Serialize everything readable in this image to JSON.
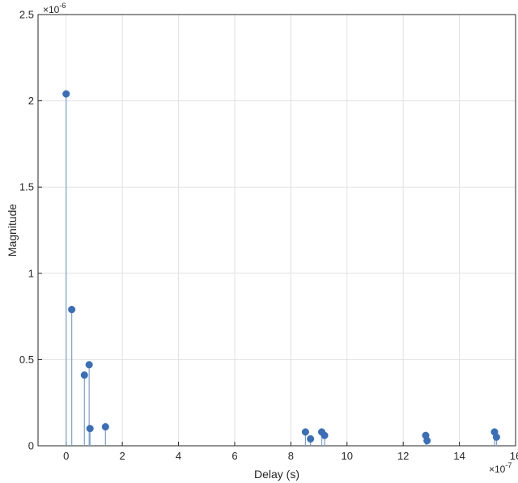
{
  "chart_data": {
    "type": "stem",
    "title": "",
    "xlabel": "Delay (s)",
    "ylabel": "Magnitude",
    "x_multiplier_label": "×10",
    "x_multiplier_exp": "-7",
    "y_multiplier_label": "×10",
    "y_multiplier_exp": "-6",
    "xlim": [
      -1,
      16
    ],
    "ylim": [
      0,
      2.5
    ],
    "xticks": [
      0,
      2,
      4,
      6,
      8,
      10,
      12,
      14,
      16
    ],
    "yticks": [
      0,
      0.5,
      1,
      1.5,
      2,
      2.5
    ],
    "ytick_labels": [
      "0",
      "0.5",
      "1",
      "1.5",
      "2",
      "2.5"
    ],
    "grid": true,
    "colors": {
      "series": "#3a6fb8",
      "stem": "#7a9fd1",
      "grid": "#e2e2e2",
      "axis": "#262626"
    },
    "points": [
      {
        "x": 0.0,
        "y": 2.04
      },
      {
        "x": 0.2,
        "y": 0.79
      },
      {
        "x": 0.65,
        "y": 0.41
      },
      {
        "x": 0.82,
        "y": 0.47
      },
      {
        "x": 0.85,
        "y": 0.1
      },
      {
        "x": 1.4,
        "y": 0.11
      },
      {
        "x": 8.52,
        "y": 0.08
      },
      {
        "x": 8.7,
        "y": 0.04
      },
      {
        "x": 9.1,
        "y": 0.08
      },
      {
        "x": 9.2,
        "y": 0.06
      },
      {
        "x": 12.8,
        "y": 0.06
      },
      {
        "x": 12.85,
        "y": 0.03
      },
      {
        "x": 15.25,
        "y": 0.08
      },
      {
        "x": 15.32,
        "y": 0.05
      }
    ]
  }
}
